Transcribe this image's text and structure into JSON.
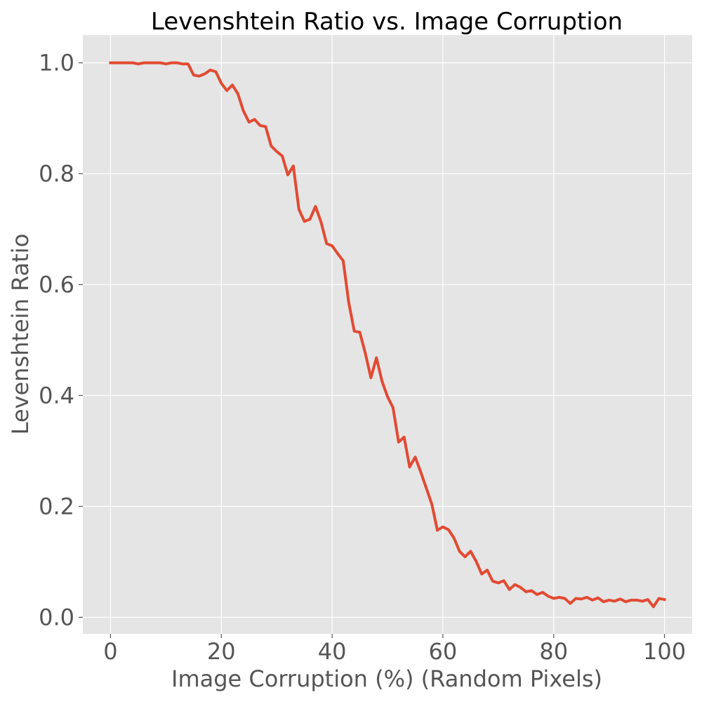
{
  "chart_data": {
    "type": "line",
    "title": "Levenshtein Ratio vs. Image Corruption",
    "xlabel": "Image Corruption (%) (Random Pixels)",
    "ylabel": "Levenshtein Ratio",
    "xlim": [
      -5,
      105
    ],
    "ylim": [
      -0.03,
      1.05
    ],
    "x_ticks": [
      0,
      20,
      40,
      60,
      80,
      100
    ],
    "x_tick_labels": [
      "0",
      "20",
      "40",
      "60",
      "80",
      "100"
    ],
    "y_ticks": [
      0.0,
      0.2,
      0.4,
      0.6,
      0.8,
      1.0
    ],
    "y_tick_labels": [
      "0.0",
      "0.2",
      "0.4",
      "0.6",
      "0.8",
      "1.0"
    ],
    "grid": true,
    "style": "ggplot",
    "series": [
      {
        "color": "#E24A33",
        "x": [
          0,
          1,
          2,
          3,
          4,
          5,
          6,
          7,
          8,
          9,
          10,
          11,
          12,
          13,
          14,
          15,
          16,
          17,
          18,
          19,
          20,
          21,
          22,
          23,
          24,
          25,
          26,
          27,
          28,
          29,
          30,
          31,
          32,
          33,
          34,
          35,
          36,
          37,
          38,
          39,
          40,
          41,
          42,
          43,
          44,
          45,
          46,
          47,
          48,
          49,
          50,
          51,
          52,
          53,
          54,
          55,
          56,
          57,
          58,
          59,
          60,
          61,
          62,
          63,
          64,
          65,
          66,
          67,
          68,
          69,
          70,
          71,
          72,
          73,
          74,
          75,
          76,
          77,
          78,
          79,
          80,
          81,
          82,
          83,
          84,
          85,
          86,
          87,
          88,
          89,
          90,
          91,
          92,
          93,
          94,
          95,
          96,
          97,
          98,
          99,
          100
        ],
        "y": [
          1.0,
          1.0,
          1.0,
          1.0,
          1.0,
          0.998,
          1.0,
          1.0,
          1.0,
          1.0,
          0.998,
          1.0,
          1.0,
          0.998,
          0.998,
          0.978,
          0.976,
          0.98,
          0.987,
          0.984,
          0.963,
          0.95,
          0.96,
          0.944,
          0.913,
          0.893,
          0.898,
          0.887,
          0.885,
          0.85,
          0.84,
          0.832,
          0.798,
          0.814,
          0.736,
          0.714,
          0.718,
          0.741,
          0.713,
          0.674,
          0.67,
          0.656,
          0.643,
          0.568,
          0.516,
          0.514,
          0.476,
          0.432,
          0.468,
          0.426,
          0.398,
          0.378,
          0.316,
          0.325,
          0.271,
          0.289,
          0.262,
          0.233,
          0.204,
          0.157,
          0.163,
          0.158,
          0.143,
          0.119,
          0.109,
          0.119,
          0.101,
          0.078,
          0.085,
          0.065,
          0.062,
          0.066,
          0.05,
          0.059,
          0.054,
          0.046,
          0.048,
          0.041,
          0.045,
          0.038,
          0.034,
          0.036,
          0.034,
          0.025,
          0.034,
          0.033,
          0.036,
          0.031,
          0.035,
          0.028,
          0.031,
          0.029,
          0.033,
          0.028,
          0.031,
          0.031,
          0.029,
          0.032,
          0.019,
          0.034,
          0.032
        ]
      }
    ]
  }
}
